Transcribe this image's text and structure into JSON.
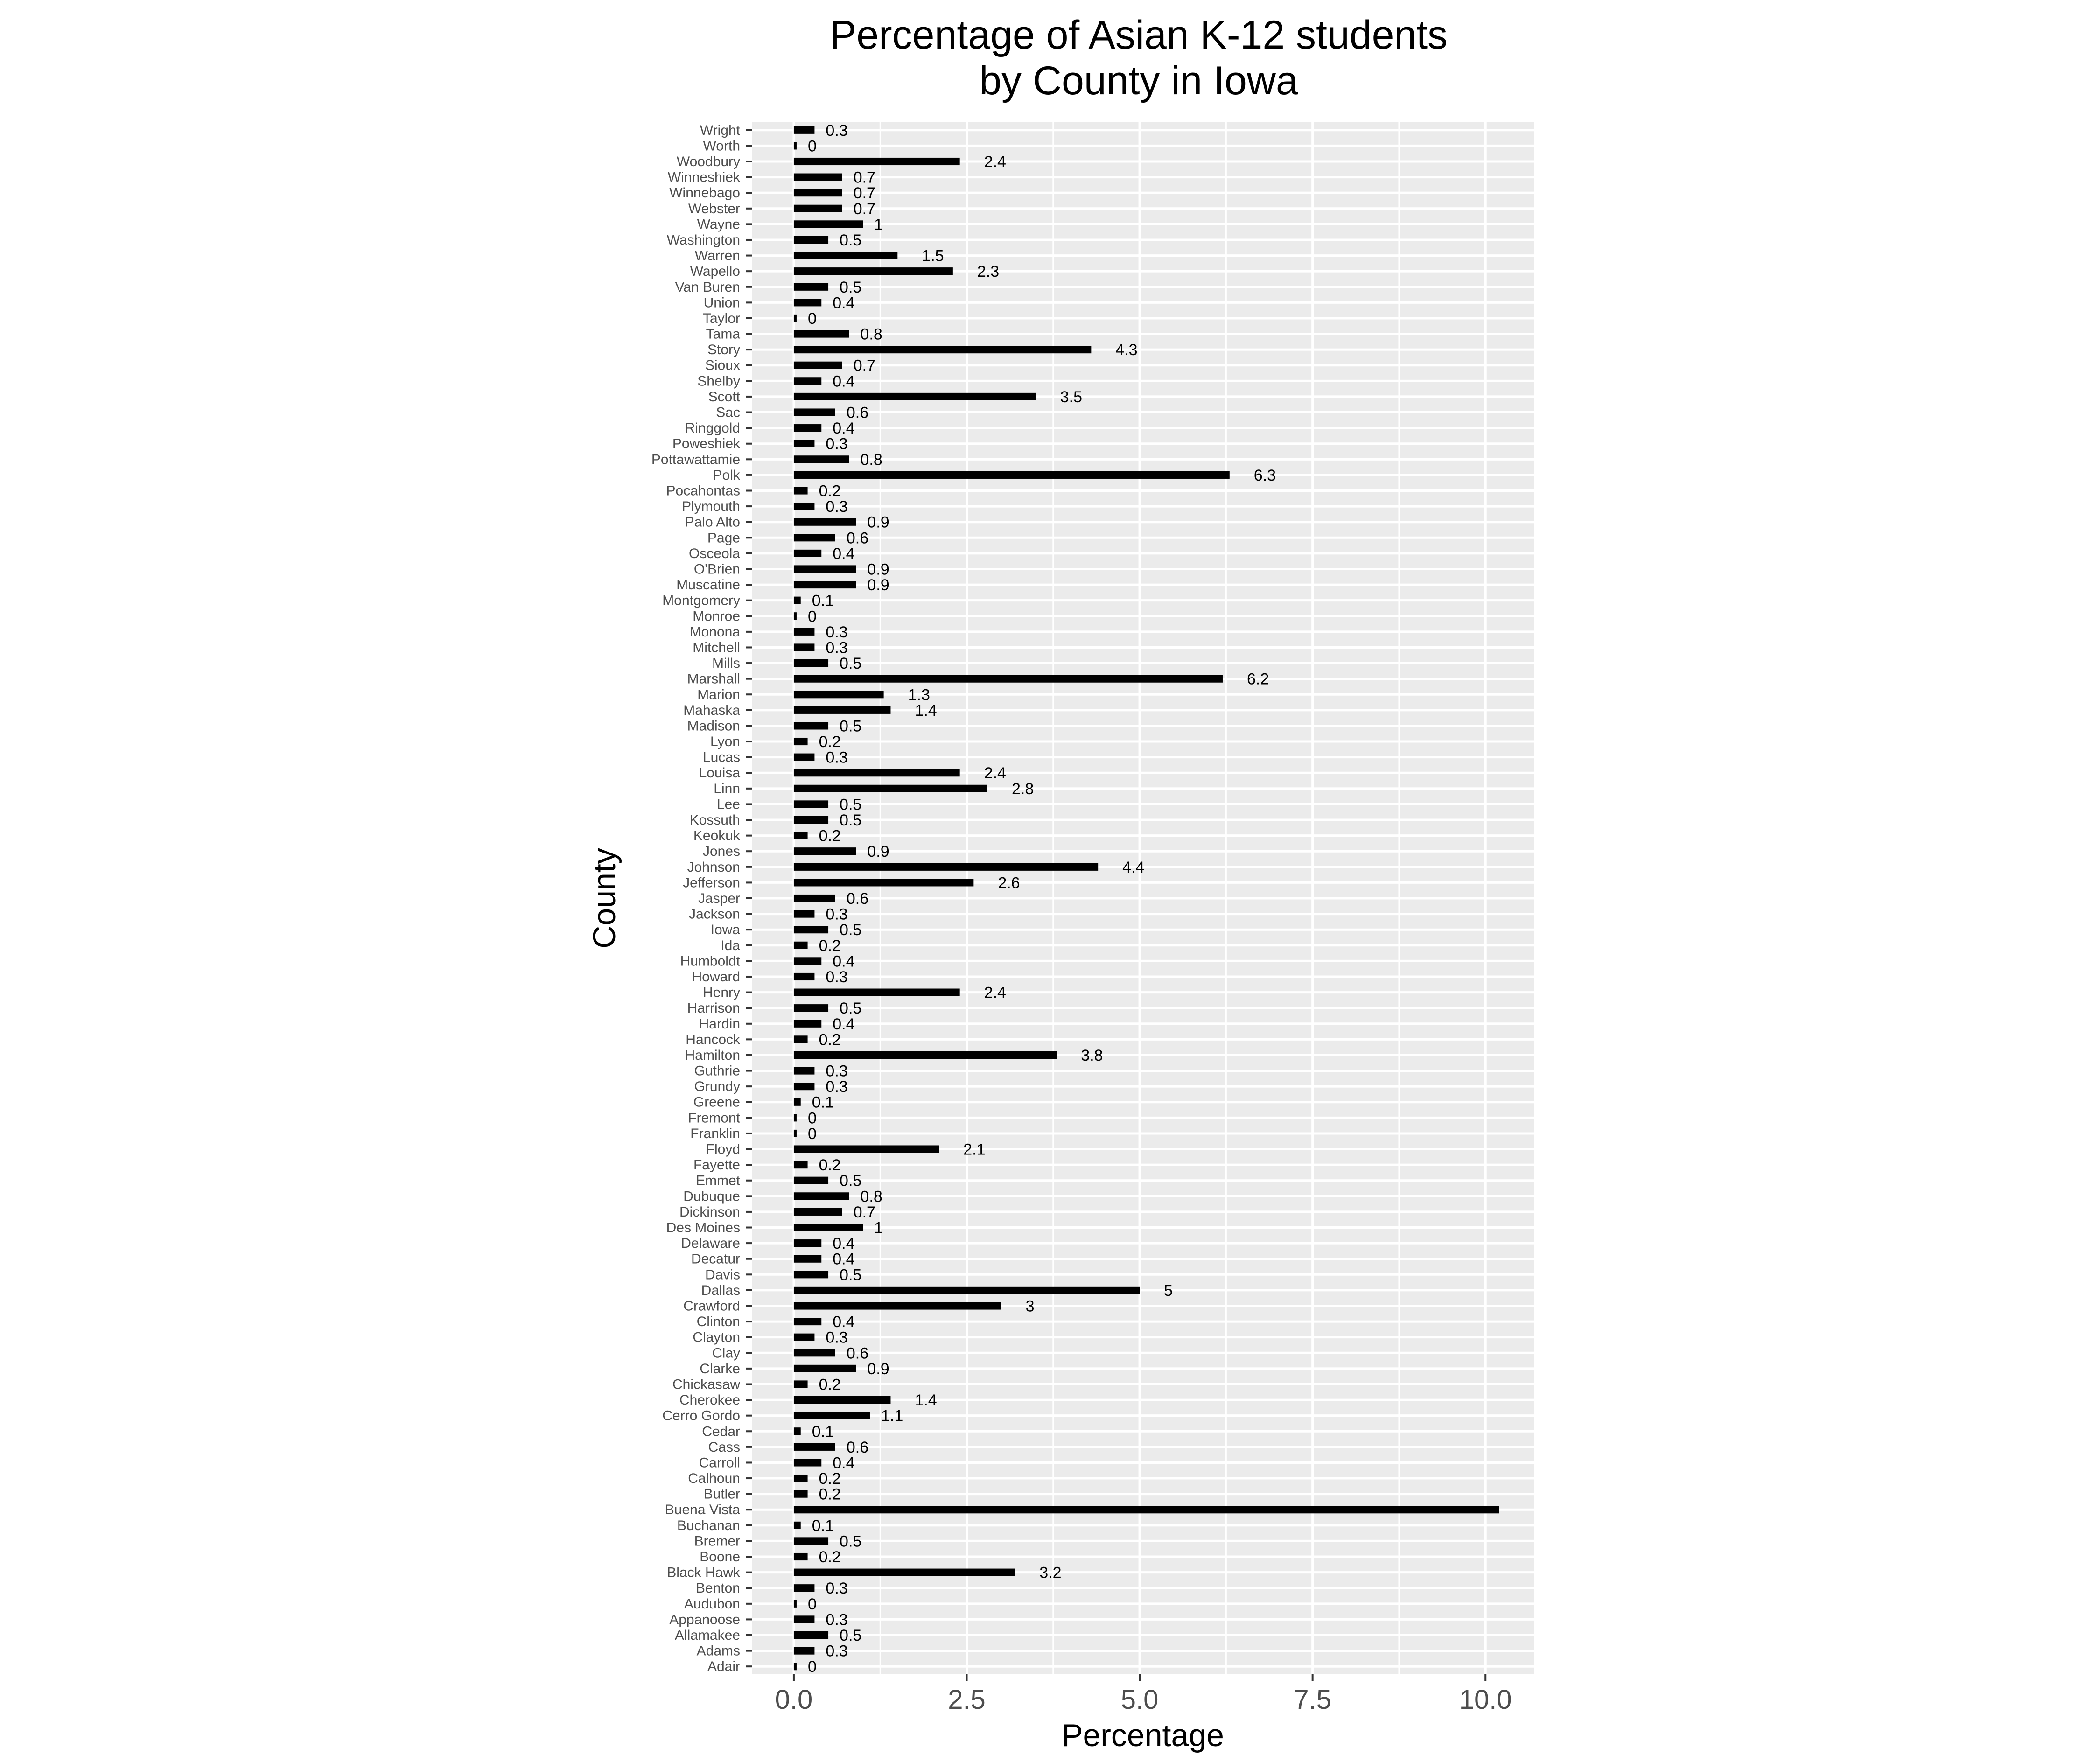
{
  "chart_data": {
    "type": "bar",
    "orientation": "horizontal",
    "title": [
      "Percentage of Asian K-12 students",
      "by County in Iowa"
    ],
    "xlabel": "Percentage",
    "ylabel": "County",
    "xlim": [
      -0.6,
      10.7
    ],
    "xticks": [
      0,
      2.5,
      5,
      7.5,
      10
    ],
    "xtick_labels": [
      "0.0",
      "2.5",
      "5.0",
      "7.5",
      "10.0"
    ],
    "grid": true,
    "legend": "none",
    "colors": {
      "panel": "#ebebeb",
      "grid": "#ffffff",
      "bar": "#000000",
      "tick_text": "#4d4d4d"
    },
    "categories": [
      "Adair",
      "Adams",
      "Allamakee",
      "Appanoose",
      "Audubon",
      "Benton",
      "Black Hawk",
      "Boone",
      "Bremer",
      "Buchanan",
      "Buena Vista",
      "Butler",
      "Calhoun",
      "Carroll",
      "Cass",
      "Cedar",
      "Cerro Gordo",
      "Cherokee",
      "Chickasaw",
      "Clarke",
      "Clay",
      "Clayton",
      "Clinton",
      "Crawford",
      "Dallas",
      "Davis",
      "Decatur",
      "Delaware",
      "Des Moines",
      "Dickinson",
      "Dubuque",
      "Emmet",
      "Fayette",
      "Floyd",
      "Franklin",
      "Fremont",
      "Greene",
      "Grundy",
      "Guthrie",
      "Hamilton",
      "Hancock",
      "Hardin",
      "Harrison",
      "Henry",
      "Howard",
      "Humboldt",
      "Ida",
      "Iowa",
      "Jackson",
      "Jasper",
      "Jefferson",
      "Johnson",
      "Jones",
      "Keokuk",
      "Kossuth",
      "Lee",
      "Linn",
      "Louisa",
      "Lucas",
      "Lyon",
      "Madison",
      "Mahaska",
      "Marion",
      "Marshall",
      "Mills",
      "Mitchell",
      "Monona",
      "Monroe",
      "Montgomery",
      "Muscatine",
      "O'Brien",
      "Osceola",
      "Page",
      "Palo Alto",
      "Plymouth",
      "Pocahontas",
      "Polk",
      "Pottawattamie",
      "Poweshiek",
      "Ringgold",
      "Sac",
      "Scott",
      "Shelby",
      "Sioux",
      "Story",
      "Tama",
      "Taylor",
      "Union",
      "Van Buren",
      "Wapello",
      "Warren",
      "Washington",
      "Wayne",
      "Webster",
      "Winnebago",
      "Winneshiek",
      "Woodbury",
      "Worth",
      "Wright"
    ],
    "values": [
      0,
      0.3,
      0.5,
      0.3,
      0,
      0.3,
      3.2,
      0.2,
      0.5,
      0.1,
      10.2,
      0.2,
      0.2,
      0.4,
      0.6,
      0.1,
      1.1,
      1.4,
      0.2,
      0.9,
      0.6,
      0.3,
      0.4,
      3,
      5,
      0.5,
      0.4,
      0.4,
      1,
      0.7,
      0.8,
      0.5,
      0.2,
      2.1,
      0,
      0,
      0.1,
      0.3,
      0.3,
      3.8,
      0.2,
      0.4,
      0.5,
      2.4,
      0.3,
      0.4,
      0.2,
      0.5,
      0.3,
      0.6,
      2.6,
      4.4,
      0.9,
      0.2,
      0.5,
      0.5,
      2.8,
      2.4,
      0.3,
      0.2,
      0.5,
      1.4,
      1.3,
      6.2,
      0.5,
      0.3,
      0.3,
      0,
      0.1,
      0.9,
      0.9,
      0.4,
      0.6,
      0.9,
      0.3,
      0.2,
      6.3,
      0.8,
      0.3,
      0.4,
      0.6,
      3.5,
      0.4,
      0.7,
      4.3,
      0.8,
      0,
      0.4,
      0.5,
      2.3,
      1.5,
      0.5,
      1,
      0.7,
      0.7,
      0.7,
      2.4,
      0,
      0.3
    ],
    "data_labels": [
      "0",
      "0.3",
      "0.5",
      "0.3",
      "0",
      "0.3",
      "3.2",
      "0.2",
      "0.5",
      "0.1",
      "",
      "0.2",
      "0.2",
      "0.4",
      "0.6",
      "0.1",
      "1.1",
      "1.4",
      "0.2",
      "0.9",
      "0.6",
      "0.3",
      "0.4",
      "3",
      "5",
      "0.5",
      "0.4",
      "0.4",
      "1",
      "0.7",
      "0.8",
      "0.5",
      "0.2",
      "2.1",
      "0",
      "0",
      "0.1",
      "0.3",
      "0.3",
      "3.8",
      "0.2",
      "0.4",
      "0.5",
      "2.4",
      "0.3",
      "0.4",
      "0.2",
      "0.5",
      "0.3",
      "0.6",
      "2.6",
      "4.4",
      "0.9",
      "0.2",
      "0.5",
      "0.5",
      "2.8",
      "2.4",
      "0.3",
      "0.2",
      "0.5",
      "1.4",
      "1.3",
      "6.2",
      "0.5",
      "0.3",
      "0.3",
      "0",
      "0.1",
      "0.9",
      "0.9",
      "0.4",
      "0.6",
      "0.9",
      "0.3",
      "0.2",
      "6.3",
      "0.8",
      "0.3",
      "0.4",
      "0.6",
      "3.5",
      "0.4",
      "0.7",
      "4.3",
      "0.8",
      "0",
      "0.4",
      "0.5",
      "2.3",
      "1.5",
      "0.5",
      "1",
      "0.7",
      "0.7",
      "0.7",
      "2.4",
      "0",
      "0.3"
    ]
  }
}
